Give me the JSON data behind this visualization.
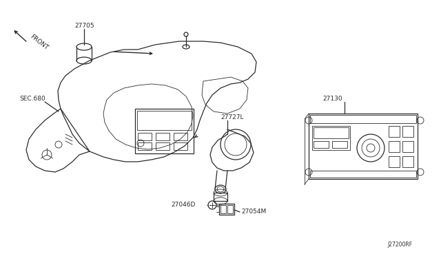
{
  "bg_color": "#ffffff",
  "line_color": "#2a2a2a",
  "text_color": "#2a2a2a",
  "fig_width": 6.4,
  "fig_height": 3.72,
  "dpi": 100,
  "font_size": 6.5,
  "labels": {
    "front": "FRONT",
    "p27705": "27705",
    "sec680": "SEC.680",
    "p27727L": "27727L",
    "p27130": "27130",
    "p27046D": "27046D",
    "p27054M": "27054M",
    "ref": "J27200RF"
  }
}
